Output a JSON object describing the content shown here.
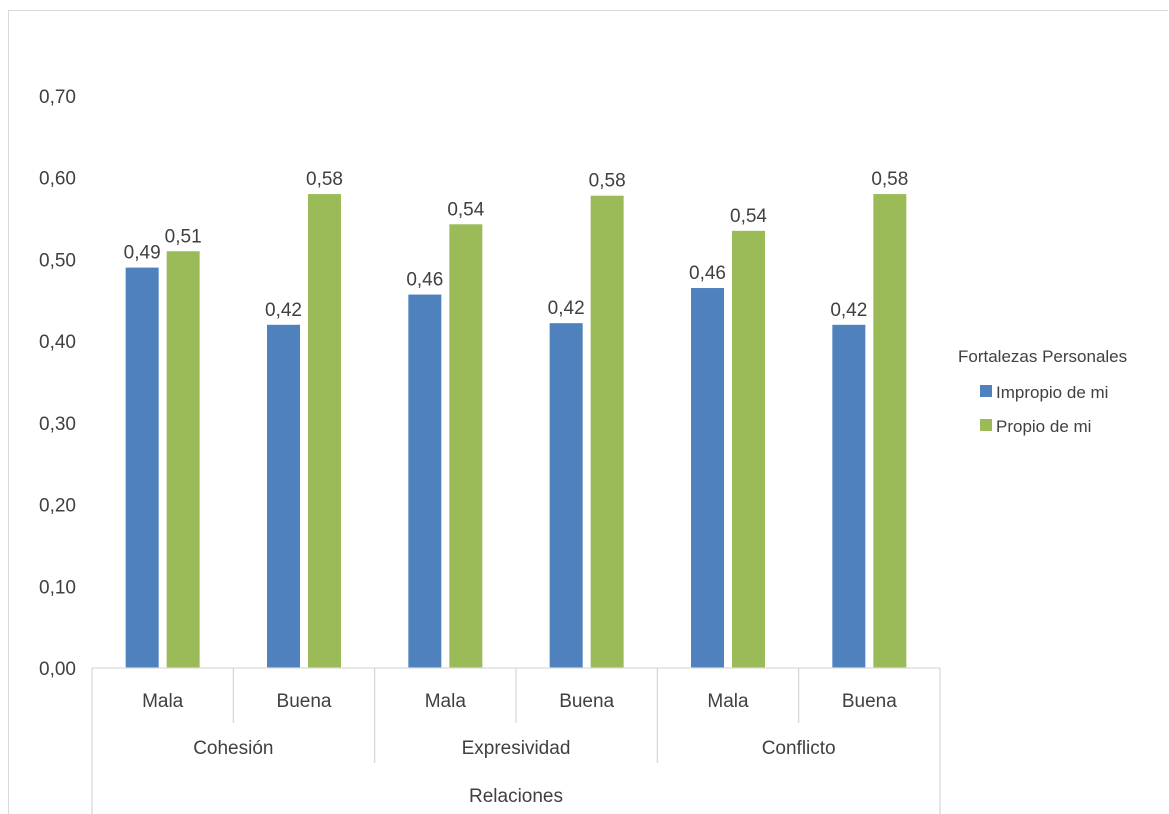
{
  "chart_data": {
    "type": "bar",
    "x_levels": {
      "subcategories": [
        "Mala",
        "Buena",
        "Mala",
        "Buena",
        "Mala",
        "Buena"
      ],
      "groups": [
        "Cohesión",
        "Expresividad",
        "Conflicto"
      ],
      "outer": "Relaciones"
    },
    "categories": [
      "Cohesión - Mala",
      "Cohesión - Buena",
      "Expresividad - Mala",
      "Expresividad - Buena",
      "Conflicto - Mala",
      "Conflicto - Buena"
    ],
    "series": [
      {
        "name": "Impropio de mi",
        "color": "#4f81bd",
        "values": [
          0.49,
          0.42,
          0.457,
          0.422,
          0.465,
          0.42
        ],
        "labels": [
          "0,49",
          "0,42",
          "0,46",
          "0,42",
          "0,46",
          "0,42"
        ]
      },
      {
        "name": "Propio de mi",
        "color": "#9bbb59",
        "values": [
          0.51,
          0.58,
          0.543,
          0.578,
          0.535,
          0.58
        ],
        "labels": [
          "0,51",
          "0,58",
          "0,54",
          "0,58",
          "0,54",
          "0,58"
        ]
      }
    ],
    "y_ticks": [
      "0,00",
      "0,10",
      "0,20",
      "0,30",
      "0,40",
      "0,50",
      "0,60",
      "0,70"
    ],
    "ylim": [
      0,
      0.7
    ],
    "legend_title": "Fortalezas Personales",
    "legend_position": "right",
    "grid": false
  }
}
